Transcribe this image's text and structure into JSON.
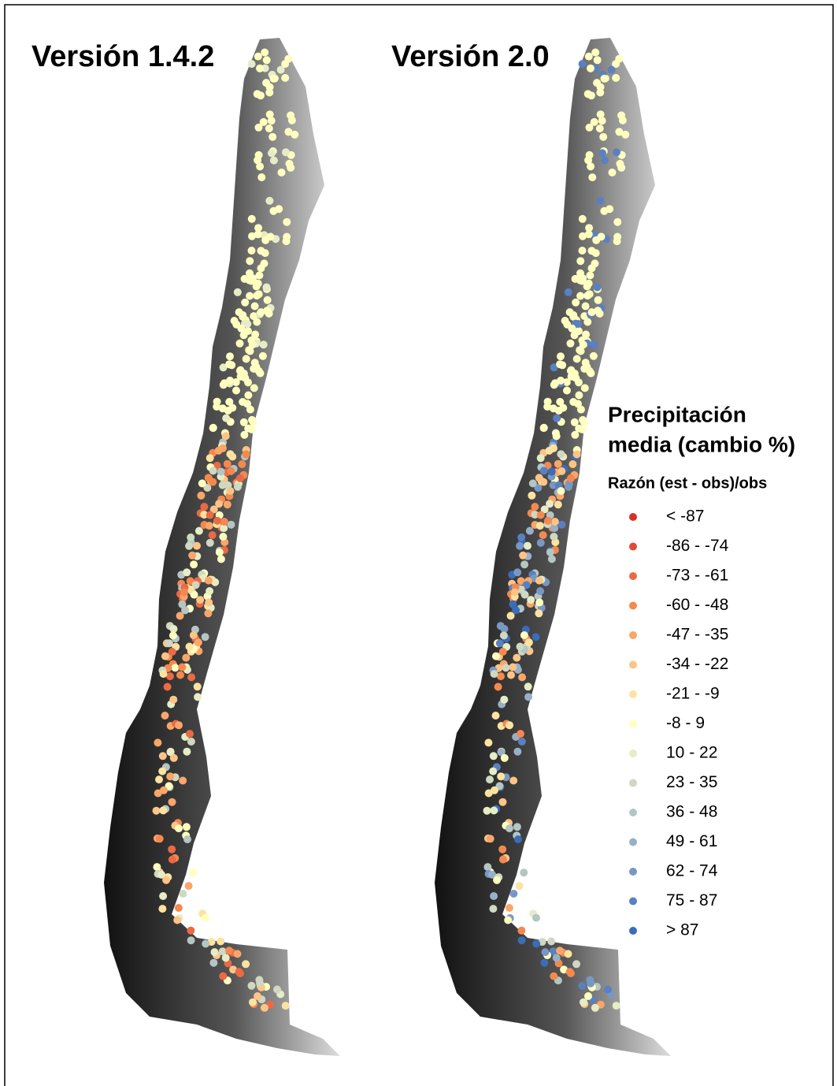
{
  "maps": [
    {
      "title": "Versión 1.4.2"
    },
    {
      "title": "Versión 2.0"
    }
  ],
  "legend": {
    "title_line1": "Precipitación",
    "title_line2": "media (cambio %)",
    "subtitle": "Razón (est - obs)/obs",
    "items": [
      {
        "label": "<  -87",
        "color": "#d73027"
      },
      {
        "label": "-86 - -74",
        "color": "#e04a33"
      },
      {
        "label": "-73 - -61",
        "color": "#eb6a45"
      },
      {
        "label": "-60 - -48",
        "color": "#f4894f"
      },
      {
        "label": "-47 - -35",
        "color": "#f9a66a"
      },
      {
        "label": "-34 - -22",
        "color": "#fcc487"
      },
      {
        "label": "-21 - -9",
        "color": "#fde3a0"
      },
      {
        "label": "-8 - 9",
        "color": "#ffffbf"
      },
      {
        "label": "10 - 22",
        "color": "#e6edc6"
      },
      {
        "label": "23 - 35",
        "color": "#cfd8c0"
      },
      {
        "label": "36 - 48",
        "color": "#b4c6c4"
      },
      {
        "label": "49 - 61",
        "color": "#97b0c6"
      },
      {
        "label": "62 - 74",
        "color": "#7897c4"
      },
      {
        "label": "75 - 87",
        "color": "#5a80c0"
      },
      {
        "label": "> 87",
        "color": "#3b6cb8"
      }
    ]
  }
}
